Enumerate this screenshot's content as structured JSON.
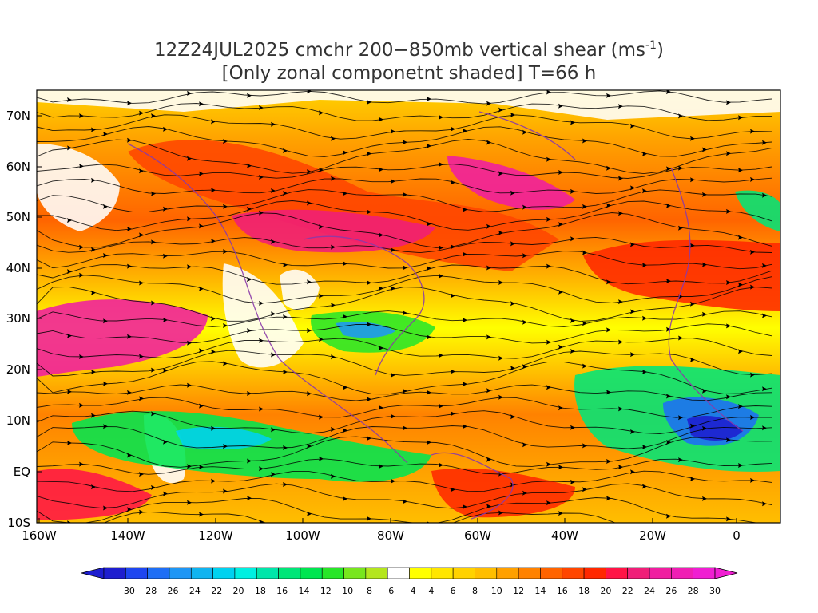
{
  "title": {
    "line1": "12Z24JUL2025 cmchr 200−850mb vertical shear (ms",
    "line1_superscript": "-1",
    "line1_close": ")",
    "line2": "[Only zonal componetnt shaded] T=66 h"
  },
  "map": {
    "type": "shaded field with streamlines",
    "lon_range": [
      "160W",
      "10E"
    ],
    "lat_range": [
      "10S",
      "75N"
    ],
    "lat_labels": [
      "70N",
      "60N",
      "50N",
      "40N",
      "30N",
      "20N",
      "10N",
      "EQ",
      "10S"
    ],
    "lon_labels": [
      "160W",
      "140W",
      "120W",
      "100W",
      "80W",
      "60W",
      "40W",
      "20W",
      "0"
    ]
  },
  "colorbar": {
    "labels": [
      "−30",
      "−28",
      "−26",
      "−24",
      "−22",
      "−20",
      "−18",
      "−16",
      "−14",
      "−12",
      "−10",
      "−8",
      "−6",
      "−4",
      "4",
      "6",
      "8",
      "10",
      "12",
      "14",
      "16",
      "18",
      "20",
      "22",
      "24",
      "26",
      "28",
      "30"
    ],
    "colors": [
      "#1e1ecf",
      "#1e46f0",
      "#1e6ef5",
      "#1e96f5",
      "#10b4f0",
      "#00d2f0",
      "#00f0e1",
      "#00e6aa",
      "#00e678",
      "#00e650",
      "#28e628",
      "#78e61e",
      "#b4e61e",
      "#ffffff",
      "#ffff00",
      "#ffe600",
      "#ffd200",
      "#ffbe00",
      "#ffa000",
      "#ff8200",
      "#ff6400",
      "#ff4600",
      "#ff2800",
      "#ff1446",
      "#f01e78",
      "#f01ea0",
      "#f01eb4",
      "#f01ed2"
    ],
    "low_arrow_color": "#1e1ecf",
    "high_arrow_color": "#f01ed2"
  }
}
